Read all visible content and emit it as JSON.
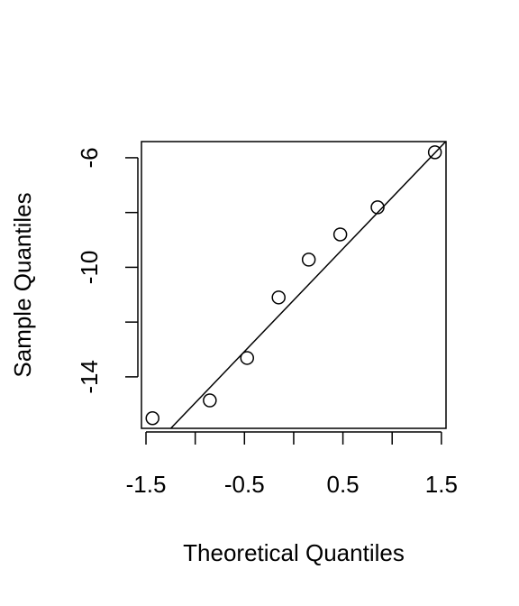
{
  "chart_data": {
    "type": "scatter",
    "xlabel": "Theoretical Quantiles",
    "ylabel": "Sample Quantiles",
    "x": [
      -1.434,
      -0.852,
      -0.473,
      -0.153,
      0.153,
      0.473,
      0.852,
      1.434
    ],
    "y": [
      -15.51,
      -14.86,
      -13.31,
      -11.1,
      -9.72,
      -8.8,
      -7.81,
      -5.8
    ],
    "color": "#000000",
    "reference_line": {
      "intercept": -11.2,
      "slope": 3.75
    },
    "xlim": [
      -1.546,
      1.547
    ],
    "xticks": [
      -1.5,
      -0.5,
      0.5,
      1.5
    ],
    "xminor_ticks": [
      -1,
      0,
      1
    ],
    "ylim": [
      -15.88,
      -5.41
    ],
    "yticks": [
      -6,
      -10,
      -14
    ],
    "yminor_ticks": [
      -8,
      -12
    ]
  }
}
